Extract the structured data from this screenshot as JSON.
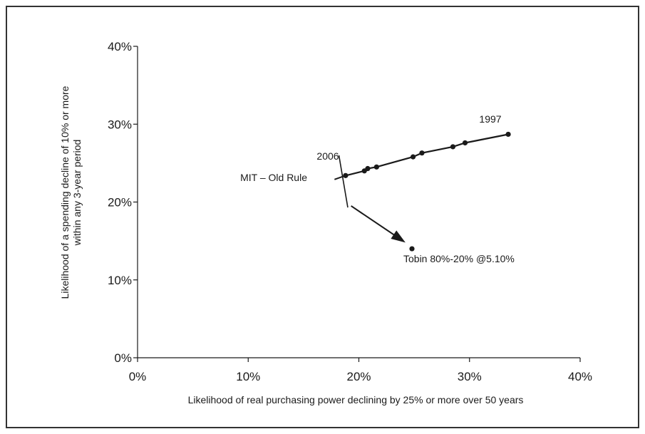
{
  "chart_data": {
    "type": "scatter",
    "xlabel": "Likelihood of real purchasing power declining by 25% or more over 50 years",
    "ylabel_lines": [
      "Likelihood of a spending decline of 10% or more",
      "within any 3-year period"
    ],
    "xlim": [
      0,
      40
    ],
    "ylim": [
      0,
      40
    ],
    "x_ticks": [
      0,
      10,
      20,
      30,
      40
    ],
    "y_ticks": [
      0,
      10,
      20,
      30,
      40
    ],
    "x_tick_labels": [
      "0%",
      "10%",
      "20%",
      "30%",
      "40%"
    ],
    "y_tick_labels": [
      "0%",
      "10%",
      "20%",
      "30%",
      "40%"
    ],
    "grid": false,
    "series": [
      {
        "name": "MIT – Old Rule",
        "line": true,
        "points": [
          {
            "x": 18.8,
            "y": 23.4
          },
          {
            "x": 20.5,
            "y": 24.0
          },
          {
            "x": 20.8,
            "y": 24.3
          },
          {
            "x": 21.6,
            "y": 24.5
          },
          {
            "x": 24.9,
            "y": 25.8
          },
          {
            "x": 25.7,
            "y": 26.3
          },
          {
            "x": 28.5,
            "y": 27.1
          },
          {
            "x": 29.6,
            "y": 27.6
          },
          {
            "x": 33.5,
            "y": 28.7
          }
        ]
      },
      {
        "name": "Tobin 80%-20% @5.10%",
        "line": false,
        "points": [
          {
            "x": 24.8,
            "y": 14.0
          }
        ]
      }
    ],
    "annotations": {
      "start_year": "2006",
      "end_year": "1997",
      "mit_label": "MIT – Old Rule",
      "tobin_label": "Tobin 80%-20% @5.10%"
    },
    "arrow": {
      "from": {
        "x": 19.3,
        "y": 19.5
      },
      "to": {
        "x": 24.0,
        "y": 15.0
      }
    },
    "line_extension": {
      "from": {
        "x": 17.8,
        "y": 22.9
      }
    },
    "break_mark": {
      "from": {
        "x": 18.2,
        "y": 26.0
      },
      "to": {
        "x": 19.0,
        "y": 19.3
      }
    },
    "colors": {
      "ink": "#1a1a1a",
      "frame": "#333333"
    }
  }
}
